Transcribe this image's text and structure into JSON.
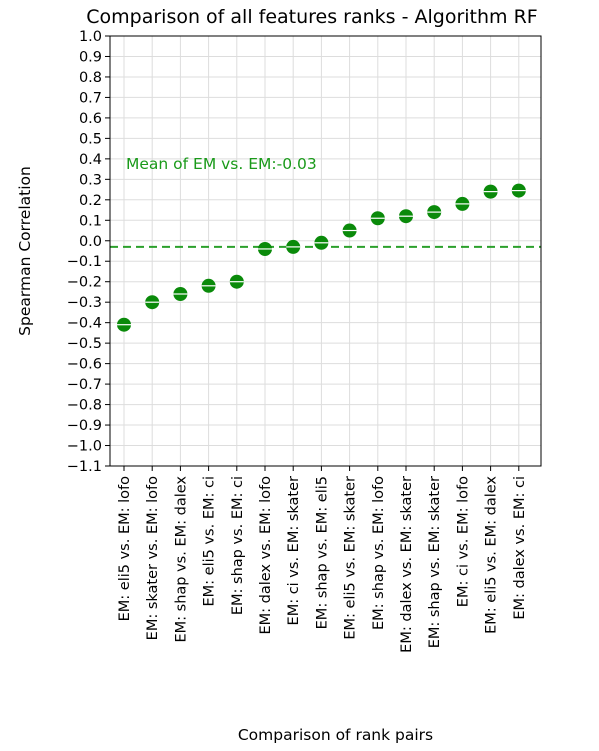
{
  "chart_data": {
    "type": "scatter",
    "title": "Comparison of all features ranks - Algorithm RF",
    "xlabel": "Comparison of rank pairs",
    "ylabel": "Spearman Correlation",
    "ylim": [
      -1.1,
      1.0
    ],
    "yticks": [
      "1.0",
      "0.9",
      "0.8",
      "0.7",
      "0.6",
      "0.5",
      "0.4",
      "0.3",
      "0.2",
      "0.1",
      "0.0",
      "-0.1",
      "-0.2",
      "-0.3",
      "-0.4",
      "-0.5",
      "-0.6",
      "-0.7",
      "-0.8",
      "-0.9",
      "-1.0",
      "-1.1"
    ],
    "grid": true,
    "categories": [
      "EM: eli5 vs. EM: lofo",
      "EM: skater vs. EM: lofo",
      "EM: shap vs. EM: dalex",
      "EM: eli5 vs. EM: ci",
      "EM: shap vs. EM: ci",
      "EM: dalex vs. EM: lofo",
      "EM: ci vs. EM: skater",
      "EM: shap vs. EM: eli5",
      "EM: eli5 vs. EM: skater",
      "EM: shap vs. EM: lofo",
      "EM: dalex vs. EM: skater",
      "EM: shap vs. EM: skater",
      "EM: ci vs. EM: lofo",
      "EM: eli5 vs. EM: dalex",
      "EM: dalex vs. EM: ci"
    ],
    "values": [
      -0.41,
      -0.3,
      -0.26,
      -0.22,
      -0.2,
      -0.04,
      -0.03,
      -0.01,
      0.05,
      0.11,
      0.12,
      0.14,
      0.18,
      0.24,
      0.245
    ],
    "mean_line": {
      "value": -0.03,
      "label": "Mean of EM vs. EM:-0.03"
    },
    "colors": {
      "points": "#0a8a0a",
      "mean_line": "#2ca02c",
      "annotation": "#1a9a1a",
      "grid": "#dddddd"
    }
  }
}
